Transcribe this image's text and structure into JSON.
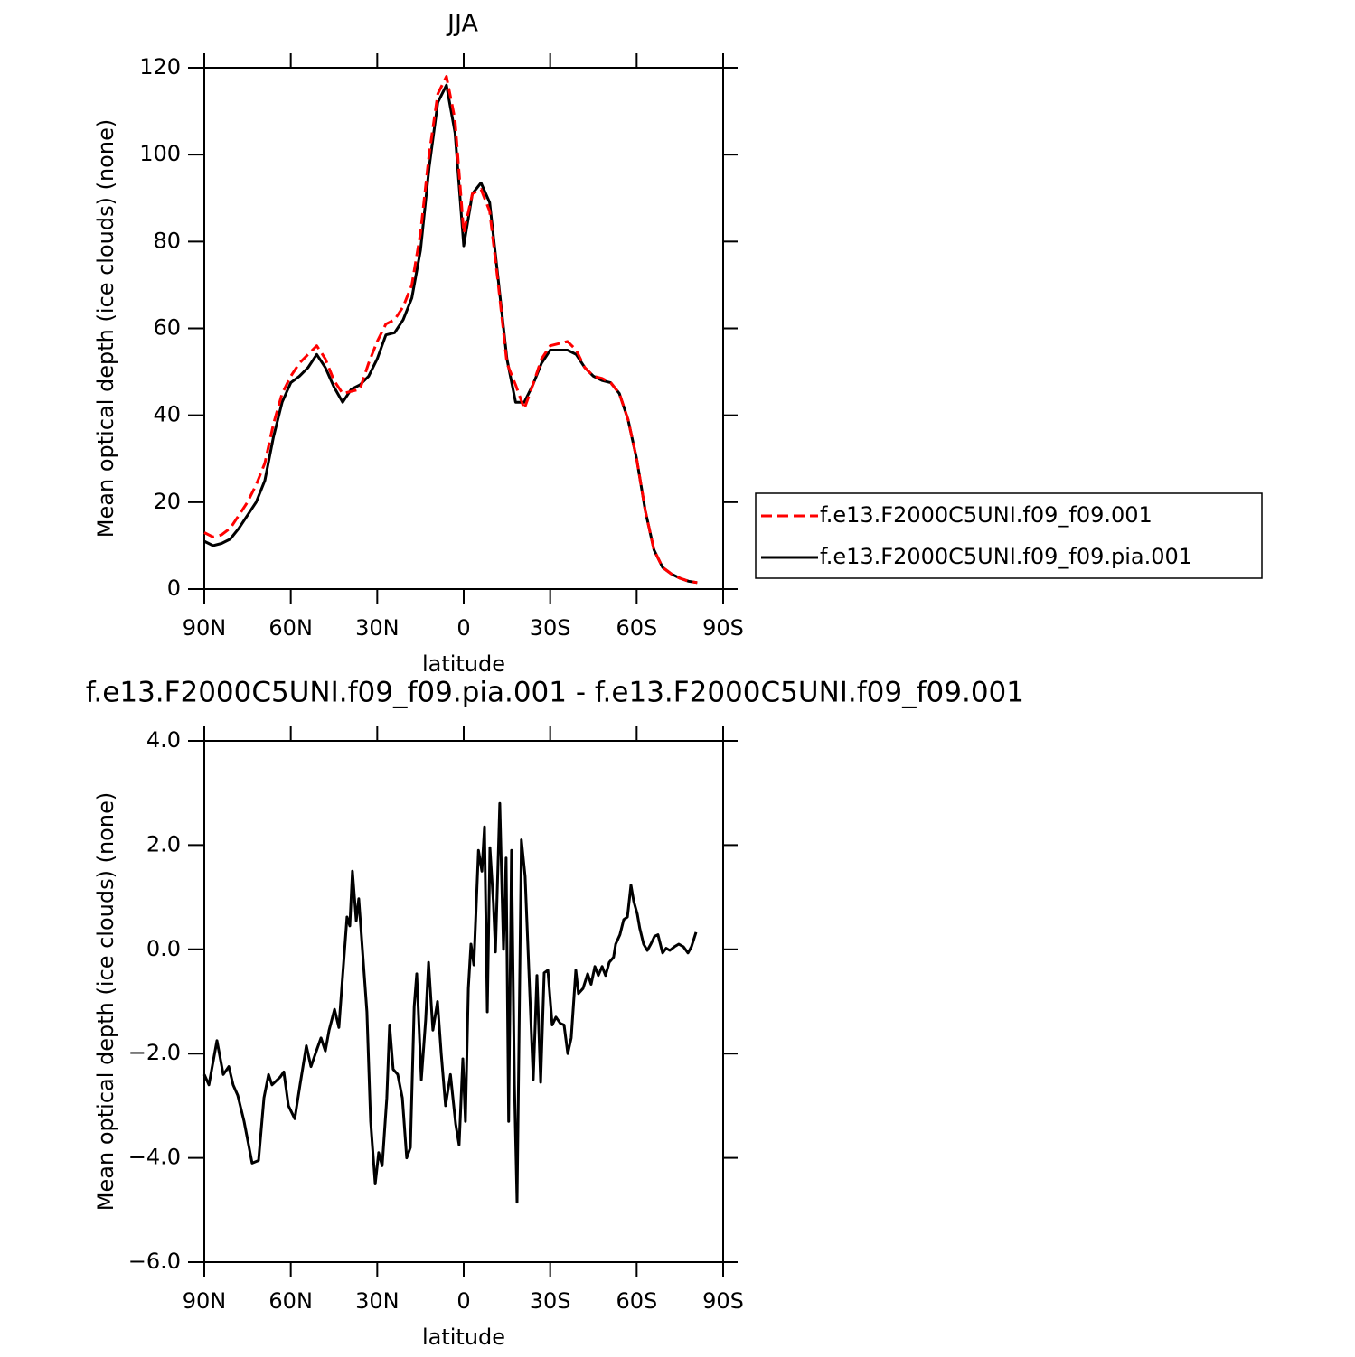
{
  "chart_data": [
    {
      "type": "line",
      "title": "JJA",
      "xlabel": "latitude",
      "ylabel": "Mean optical depth (ice clouds) (none)",
      "x": [
        90,
        87,
        84,
        81,
        78,
        75,
        72,
        69,
        66,
        63,
        60,
        57,
        54,
        51,
        48,
        45,
        42,
        39,
        36,
        33,
        30,
        27,
        24,
        21,
        18,
        15,
        12,
        9,
        6,
        3,
        0,
        -3,
        -6,
        -9,
        -12,
        -15,
        -18,
        -21,
        -24,
        -27,
        -30,
        -33,
        -36,
        -39,
        -42,
        -45,
        -48,
        -51,
        -54,
        -57,
        -60,
        -63,
        -66,
        -69,
        -72,
        -75,
        -78,
        -81
      ],
      "series": [
        {
          "name": "f.e13.F2000C5UNI.f09_f09.001",
          "color": "#ff0000",
          "linestyle": "dashed",
          "values": [
            13,
            12,
            12.5,
            14,
            17,
            20,
            24,
            29,
            38,
            45,
            49,
            52,
            54,
            56,
            53,
            48,
            45,
            45.5,
            46,
            52,
            57,
            61,
            62,
            65,
            70,
            82,
            100,
            114,
            118,
            108,
            82,
            91,
            92,
            87,
            70,
            52,
            47,
            41.5,
            47,
            53,
            56,
            56.5,
            57,
            55,
            51,
            49,
            48.5,
            47.5,
            45,
            39,
            30,
            18,
            9,
            5,
            3.5,
            2.5,
            1.8,
            1.5
          ]
        },
        {
          "name": "f.e13.F2000C5UNI.f09_f09.pia.001",
          "color": "#000000",
          "linestyle": "solid",
          "values": [
            11,
            10,
            10.5,
            11.5,
            14,
            17,
            20,
            25,
            35,
            43,
            47.5,
            49,
            51,
            54,
            51,
            46.5,
            43,
            46,
            47,
            49,
            53,
            58.5,
            59,
            62,
            67,
            78,
            97,
            112,
            116,
            105,
            79,
            91,
            93.5,
            89,
            71,
            53,
            43,
            43,
            47,
            52,
            55,
            55,
            55,
            54,
            51,
            49,
            48,
            47.5,
            45,
            39,
            30,
            18,
            9,
            5,
            3.5,
            2.5,
            1.8,
            1.5
          ]
        }
      ],
      "xlim": [
        90,
        -90
      ],
      "xticks": [
        {
          "value": 90,
          "label": "90N"
        },
        {
          "value": 60,
          "label": "60N"
        },
        {
          "value": 30,
          "label": "30N"
        },
        0,
        {
          "value": -30,
          "label": "30S"
        },
        {
          "value": -60,
          "label": "60S"
        },
        {
          "value": -90,
          "label": "90S"
        }
      ],
      "ylim": [
        0,
        120
      ],
      "yticks": [
        0,
        20,
        40,
        60,
        80,
        100,
        120
      ],
      "legend": "right"
    },
    {
      "type": "line",
      "title": "f.e13.F2000C5UNI.f09_f09.pia.001 - f.e13.F2000C5UNI.f09_f09.001",
      "xlabel": "latitude",
      "ylabel": "Mean optical depth (ice clouds) (none)",
      "x": [
        90,
        88.4,
        85.6,
        83.4,
        81.5,
        80,
        78.4,
        76.2,
        73.4,
        71.2,
        69.3,
        67.7,
        66.5,
        63.7,
        62.4,
        60.8,
        58.6,
        56.8,
        54.6,
        53,
        51.1,
        49.5,
        48,
        46.7,
        44.8,
        43.3,
        42,
        40.5,
        39.5,
        38.6,
        37.3,
        36.4,
        34.5,
        33.6,
        32.3,
        30.7,
        29.5,
        28.3,
        26.7,
        25.7,
        24.5,
        22.9,
        21.3,
        19.8,
        18.5,
        17.2,
        16.3,
        14.7,
        13.2,
        12.2,
        10.7,
        9.1,
        7.8,
        6.3,
        4.6,
        2.8,
        1.6,
        0.3,
        -0.6,
        -1.6,
        -2.5,
        -3.5,
        -5.1,
        -6.3,
        -7.2,
        -8.2,
        -9.1,
        -10.3,
        -11,
        -12.5,
        -13.8,
        -14.7,
        -15.6,
        -16.6,
        -17.6,
        -18.5,
        -20,
        -21.3,
        -24.1,
        -25.4,
        -26.7,
        -27.9,
        -29.2,
        -30.7,
        -32,
        -33.5,
        -34.8,
        -36.1,
        -37.3,
        -38.9,
        -39.8,
        -41.4,
        -43,
        -44.2,
        -45.5,
        -46.7,
        -48,
        -49.2,
        -50.5,
        -52,
        -52.7,
        -54.2,
        -55.5,
        -56.8,
        -58,
        -59,
        -60.2,
        -61.1,
        -62.4,
        -63.7,
        -64.9,
        -66.2,
        -67.4,
        -69,
        -70.2,
        -71.5,
        -73.1,
        -74.6,
        -76.2,
        -77.8,
        -79,
        -80.6
      ],
      "values": [
        -2.4,
        -2.6,
        -1.75,
        -2.4,
        -2.25,
        -2.6,
        -2.8,
        -3.3,
        -4.1,
        -4.05,
        -2.85,
        -2.4,
        -2.6,
        -2.45,
        -2.35,
        -3.0,
        -3.25,
        -2.6,
        -1.85,
        -2.25,
        -1.95,
        -1.7,
        -1.95,
        -1.55,
        -1.15,
        -1.5,
        -0.5,
        0.62,
        0.45,
        1.5,
        0.55,
        0.97,
        -0.5,
        -1.2,
        -3.3,
        -4.5,
        -3.9,
        -4.15,
        -2.85,
        -1.45,
        -2.3,
        -2.4,
        -2.85,
        -4.0,
        -3.8,
        -1.1,
        -0.47,
        -2.5,
        -1.35,
        -0.25,
        -1.55,
        -1.0,
        -2.0,
        -3.0,
        -2.4,
        -3.35,
        -3.75,
        -2.1,
        -3.3,
        -0.75,
        0.1,
        -0.3,
        1.9,
        1.5,
        2.35,
        -1.2,
        1.95,
        0.9,
        -0.05,
        2.8,
        0.0,
        1.75,
        -3.3,
        1.9,
        -2.6,
        -4.85,
        2.1,
        1.4,
        -2.5,
        -0.5,
        -2.55,
        -0.45,
        -0.4,
        -1.45,
        -1.3,
        -1.42,
        -1.45,
        -2.0,
        -1.7,
        -0.4,
        -0.85,
        -0.75,
        -0.47,
        -0.67,
        -0.33,
        -0.5,
        -0.33,
        -0.5,
        -0.25,
        -0.15,
        0.1,
        0.28,
        0.57,
        0.62,
        1.23,
        0.92,
        0.68,
        0.4,
        0.1,
        -0.02,
        0.1,
        0.25,
        0.28,
        -0.07,
        0.02,
        -0.02,
        0.05,
        0.1,
        0.05,
        -0.07,
        0.05,
        0.33
      ],
      "color": "#000000",
      "xlim": [
        90,
        -90
      ],
      "xticks": [
        {
          "value": 90,
          "label": "90N"
        },
        {
          "value": 60,
          "label": "60N"
        },
        {
          "value": 30,
          "label": "30N"
        },
        0,
        {
          "value": -30,
          "label": "30S"
        },
        {
          "value": -60,
          "label": "60S"
        },
        {
          "value": -90,
          "label": "90S"
        }
      ],
      "ylim": [
        -6,
        4
      ],
      "yticks": [
        {
          "value": -6,
          "label": "−6.0"
        },
        {
          "value": -4,
          "label": "−4.0"
        },
        {
          "value": -2,
          "label": "−2.0"
        },
        {
          "value": 0,
          "label": "0.0"
        },
        {
          "value": 2,
          "label": "2.0"
        },
        {
          "value": 4,
          "label": "4.0"
        }
      ]
    }
  ]
}
